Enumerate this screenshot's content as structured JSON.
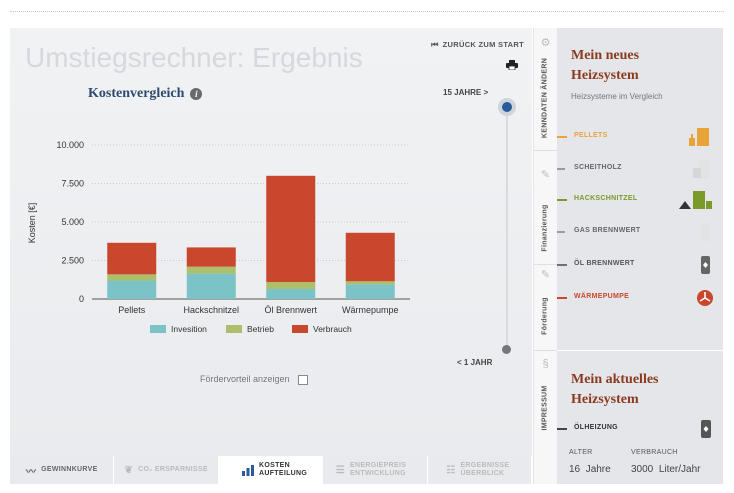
{
  "page": {
    "title": "Umstiegsrechner: Ergebnis"
  },
  "nav": {
    "back_label": "ZURÜCK ZUM START",
    "print_icon": "printer-icon"
  },
  "chart_section": {
    "title": "Kostenvergleich"
  },
  "slider": {
    "top_label": "15 JAHRE >",
    "bottom_label": "< 1 JAHR",
    "selected_years": 15
  },
  "foerder": {
    "label": "Fördervorteil anzeigen",
    "checked": false
  },
  "chart_data": {
    "type": "bar",
    "stacked": true,
    "categories": [
      "Pellets",
      "Hackschnitzel",
      "Öl Brennwert",
      "Wärmepumpe"
    ],
    "series": [
      {
        "name": "Invesition",
        "color": "#7cc3c8",
        "values": [
          1200,
          1650,
          650,
          950
        ]
      },
      {
        "name": "Betrieb",
        "color": "#aebf6b",
        "values": [
          400,
          450,
          450,
          200
        ]
      },
      {
        "name": "Verbrauch",
        "color": "#c9472c",
        "values": [
          2050,
          1250,
          6900,
          3150
        ]
      }
    ],
    "ylabel": "Kosten [€]",
    "xlabel": "",
    "ylim": [
      0,
      10000
    ],
    "yticks": [
      0,
      2500,
      5000,
      7500,
      10000
    ],
    "ytick_labels": [
      "0",
      "2.500",
      "5.000",
      "7.500",
      "10.000"
    ],
    "grid": true,
    "legend_position": "bottom"
  },
  "bottom_tabs": [
    {
      "label": "GEWINNKURVE",
      "icon": "line-chart-icon",
      "state": "normal"
    },
    {
      "label": "CO₂ ERSPARNISSE",
      "icon": "leaf-icon",
      "state": "faded"
    },
    {
      "label": "KOSTEN AUFTEILUNG",
      "icon": "bar-chart-icon",
      "state": "active"
    },
    {
      "label": "ENERGIEPREIS ENTWICKLUNG",
      "icon": "database-icon",
      "state": "faded"
    },
    {
      "label": "ERGEBNISSE ÜBERBLICK",
      "icon": "list-icon",
      "state": "faded"
    }
  ],
  "side_tabs": [
    {
      "label": "KENNDATEN ÄNDERN",
      "icon": "gear-icon"
    },
    {
      "label": "Finanzierung",
      "icon": "pencil-icon"
    },
    {
      "label": "Förderung",
      "icon": "pencil-icon"
    },
    {
      "label": "IMPRESSUM",
      "icon": "paperclip-icon"
    }
  ],
  "sidebar": {
    "new_title_1": "Mein neues",
    "new_title_2": "Heizsystem",
    "subtitle": "Heizsysteme im Vergleich",
    "systems": [
      {
        "label": "PELLETS",
        "color": "#e8a33a",
        "icon": "pellets-icon",
        "selected": true
      },
      {
        "label": "SCHEITHOLZ",
        "color": "#9a9a9a",
        "icon": "firewood-icon",
        "selected": false
      },
      {
        "label": "HACKSCHNITZEL",
        "color": "#7a9a2a",
        "icon": "woodchips-icon",
        "selected": true
      },
      {
        "label": "GAS BRENNWERT",
        "color": "#9a9a9a",
        "icon": "gas-boiler-icon",
        "selected": false
      },
      {
        "label": "ÖL BRENNWERT",
        "color": "#6f6f6f",
        "icon": "oil-boiler-icon",
        "selected": true
      },
      {
        "label": "WÄRMEPUMPE",
        "color": "#c9472c",
        "icon": "heatpump-icon",
        "selected": true
      }
    ],
    "current_title_1": "Mein aktuelles",
    "current_title_2": "Heizsystem",
    "current": {
      "label": "ÖLHEIZUNG",
      "icon": "oil-heating-icon",
      "age_header": "ALTER",
      "age_value": "16",
      "age_unit": "Jahre",
      "usage_header": "VERBRAUCH",
      "usage_value": "3000",
      "usage_unit": "Liter/Jahr"
    }
  }
}
